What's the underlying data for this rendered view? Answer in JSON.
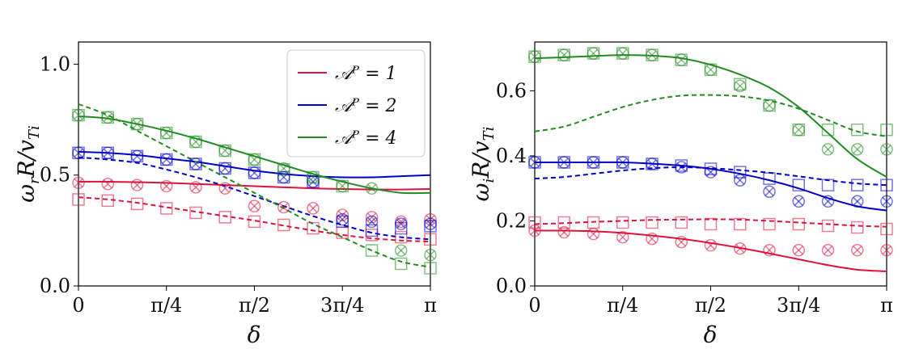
{
  "colors": {
    "red": "#dc143c",
    "blue": "#0000cd",
    "green": "#228b22"
  },
  "chart_data": [
    {
      "type": "line",
      "xlabel": "δ",
      "ylabel": "ω_r R/v_Ti",
      "ylabel_parts": {
        "main": "ω",
        "sub": "r",
        "mid": "R/v",
        "sub2": "Ti"
      },
      "xlim": [
        0,
        3.14159
      ],
      "ylim": [
        0,
        1.1
      ],
      "xticks": [
        {
          "v": 0,
          "label": "0"
        },
        {
          "v": 0.7854,
          "label": "π/4"
        },
        {
          "v": 1.5708,
          "label": "π/2"
        },
        {
          "v": 2.3562,
          "label": "3π/4"
        },
        {
          "v": 3.14159,
          "label": "π"
        }
      ],
      "yticks": [
        {
          "v": 0.0,
          "label": "0.0"
        },
        {
          "v": 0.5,
          "label": "0.5"
        },
        {
          "v": 1.0,
          "label": "1.0"
        }
      ],
      "legend": {
        "position": "top-right",
        "entries": [
          {
            "label": "𝒜ᴾ = 1",
            "color": "red"
          },
          {
            "label": "𝒜ᴾ = 2",
            "color": "blue"
          },
          {
            "label": "𝒜ᴾ = 4",
            "color": "green"
          }
        ]
      },
      "x": [
        0,
        0.2618,
        0.5236,
        0.7854,
        1.0472,
        1.309,
        1.5708,
        1.8326,
        2.0944,
        2.3562,
        2.618,
        2.8798,
        3.14159
      ],
      "series": [
        {
          "name": "A=1 solid",
          "color": "red",
          "dash": false,
          "values": [
            0.47,
            0.47,
            0.468,
            0.465,
            0.46,
            0.455,
            0.45,
            0.445,
            0.44,
            0.437,
            0.435,
            0.435,
            0.437
          ]
        },
        {
          "name": "A=1 dashed",
          "color": "red",
          "dash": true,
          "values": [
            0.4,
            0.39,
            0.375,
            0.355,
            0.335,
            0.315,
            0.295,
            0.272,
            0.25,
            0.23,
            0.215,
            0.205,
            0.2
          ]
        },
        {
          "name": "A=2 solid",
          "color": "blue",
          "dash": false,
          "values": [
            0.605,
            0.6,
            0.59,
            0.575,
            0.56,
            0.54,
            0.52,
            0.505,
            0.495,
            0.49,
            0.49,
            0.495,
            0.5
          ]
        },
        {
          "name": "A=2 dashed",
          "color": "blue",
          "dash": true,
          "values": [
            0.58,
            0.57,
            0.555,
            0.525,
            0.49,
            0.45,
            0.405,
            0.36,
            0.315,
            0.275,
            0.24,
            0.22,
            0.21
          ]
        },
        {
          "name": "A=4 solid",
          "color": "green",
          "dash": false,
          "values": [
            0.765,
            0.755,
            0.73,
            0.7,
            0.665,
            0.625,
            0.585,
            0.545,
            0.505,
            0.47,
            0.44,
            0.42,
            0.42
          ]
        },
        {
          "name": "A=4 dashed",
          "color": "green",
          "dash": true,
          "values": [
            0.82,
            0.77,
            0.7,
            0.63,
            0.56,
            0.49,
            0.42,
            0.35,
            0.28,
            0.22,
            0.16,
            0.11,
            0.085
          ]
        }
      ],
      "markers": {
        "x": [
          0,
          0.2618,
          0.5236,
          0.7854,
          1.0472,
          1.309,
          1.5708,
          1.8326,
          2.0944,
          2.3562,
          2.618,
          2.8798,
          3.14159
        ],
        "squares": [
          {
            "color": "red",
            "values": [
              0.39,
              0.385,
              0.37,
              0.35,
              0.33,
              0.31,
              0.29,
              0.275,
              0.26,
              0.24,
              0.23,
              0.22,
              0.21
            ]
          },
          {
            "color": "blue",
            "values": [
              0.6,
              0.6,
              0.585,
              0.57,
              0.55,
              0.53,
              0.51,
              0.49,
              0.47,
              0.29,
              0.25,
              0.26,
              0.27
            ]
          },
          {
            "color": "green",
            "values": [
              0.77,
              0.76,
              0.73,
              0.69,
              0.65,
              0.61,
              0.57,
              0.525,
              0.49,
              0.45,
              0.16,
              0.1,
              0.08
            ]
          }
        ],
        "crosses": [
          {
            "color": "red",
            "values": [
              0.465,
              0.46,
              0.455,
              0.45,
              0.445,
              0.44,
              0.36,
              0.355,
              0.35,
              0.32,
              0.31,
              0.29,
              0.3
            ]
          },
          {
            "color": "blue",
            "values": [
              0.6,
              0.6,
              0.585,
              0.57,
              0.55,
              0.53,
              0.51,
              0.49,
              0.47,
              0.3,
              0.29,
              0.28,
              0.28
            ]
          },
          {
            "color": "green",
            "values": [
              0.77,
              0.76,
              0.73,
              0.69,
              0.65,
              0.61,
              0.57,
              0.53,
              0.49,
              0.45,
              0.44,
              0.16,
              0.14
            ]
          }
        ]
      }
    },
    {
      "type": "line",
      "xlabel": "δ",
      "ylabel": "ω_i R/v_Ti",
      "ylabel_parts": {
        "main": "ω",
        "sub": "i",
        "mid": "R/v",
        "sub2": "Ti"
      },
      "xlim": [
        0,
        3.14159
      ],
      "ylim": [
        0,
        0.75
      ],
      "xticks": [
        {
          "v": 0,
          "label": "0"
        },
        {
          "v": 0.7854,
          "label": "π/4"
        },
        {
          "v": 1.5708,
          "label": "π/2"
        },
        {
          "v": 2.3562,
          "label": "3π/4"
        },
        {
          "v": 3.14159,
          "label": "π"
        }
      ],
      "yticks": [
        {
          "v": 0.0,
          "label": "0.0"
        },
        {
          "v": 0.2,
          "label": "0.2"
        },
        {
          "v": 0.4,
          "label": "0.4"
        },
        {
          "v": 0.6,
          "label": "0.6"
        }
      ],
      "x": [
        0,
        0.2618,
        0.5236,
        0.7854,
        1.0472,
        1.309,
        1.5708,
        1.8326,
        2.0944,
        2.3562,
        2.618,
        2.8798,
        3.14159
      ],
      "series": [
        {
          "name": "A=1 solid",
          "color": "red",
          "dash": false,
          "values": [
            0.17,
            0.17,
            0.168,
            0.163,
            0.155,
            0.145,
            0.132,
            0.117,
            0.1,
            0.082,
            0.064,
            0.05,
            0.045
          ]
        },
        {
          "name": "A=1 dashed",
          "color": "red",
          "dash": true,
          "values": [
            0.19,
            0.193,
            0.197,
            0.2,
            0.203,
            0.204,
            0.205,
            0.204,
            0.2,
            0.195,
            0.19,
            0.185,
            0.182
          ]
        },
        {
          "name": "A=2 solid",
          "color": "blue",
          "dash": false,
          "values": [
            0.38,
            0.38,
            0.38,
            0.38,
            0.376,
            0.37,
            0.36,
            0.345,
            0.325,
            0.3,
            0.27,
            0.245,
            0.232
          ]
        },
        {
          "name": "A=2 dashed",
          "color": "blue",
          "dash": true,
          "values": [
            0.33,
            0.335,
            0.345,
            0.355,
            0.362,
            0.365,
            0.362,
            0.356,
            0.348,
            0.337,
            0.325,
            0.315,
            0.31
          ]
        },
        {
          "name": "A=4 solid",
          "color": "green",
          "dash": false,
          "values": [
            0.7,
            0.703,
            0.707,
            0.71,
            0.708,
            0.7,
            0.68,
            0.65,
            0.61,
            0.55,
            0.47,
            0.39,
            0.335
          ]
        },
        {
          "name": "A=4 dashed",
          "color": "green",
          "dash": true,
          "values": [
            0.475,
            0.49,
            0.52,
            0.55,
            0.572,
            0.585,
            0.587,
            0.583,
            0.57,
            0.545,
            0.51,
            0.475,
            0.46
          ]
        }
      ],
      "markers": {
        "x": [
          0,
          0.2618,
          0.5236,
          0.7854,
          1.0472,
          1.309,
          1.5708,
          1.8326,
          2.0944,
          2.3562,
          2.618,
          2.8798,
          3.14159
        ],
        "squares": [
          {
            "color": "red",
            "values": [
              0.195,
              0.195,
              0.195,
              0.195,
              0.195,
              0.195,
              0.19,
              0.19,
              0.19,
              0.19,
              0.185,
              0.18,
              0.175
            ]
          },
          {
            "color": "blue",
            "values": [
              0.38,
              0.38,
              0.38,
              0.38,
              0.375,
              0.37,
              0.36,
              0.35,
              0.33,
              0.31,
              0.31,
              0.31,
              0.31
            ]
          },
          {
            "color": "green",
            "values": [
              0.705,
              0.71,
              0.715,
              0.715,
              0.71,
              0.695,
              0.665,
              0.62,
              0.555,
              0.48,
              0.48,
              0.48,
              0.48
            ]
          }
        ],
        "crosses": [
          {
            "color": "red",
            "values": [
              0.17,
              0.165,
              0.16,
              0.15,
              0.145,
              0.135,
              0.125,
              0.115,
              0.11,
              0.11,
              0.11,
              0.11,
              0.11
            ]
          },
          {
            "color": "blue",
            "values": [
              0.38,
              0.38,
              0.38,
              0.38,
              0.375,
              0.365,
              0.35,
              0.325,
              0.29,
              0.26,
              0.26,
              0.26,
              0.26
            ]
          },
          {
            "color": "green",
            "values": [
              0.705,
              0.71,
              0.715,
              0.715,
              0.71,
              0.695,
              0.665,
              0.615,
              0.555,
              0.48,
              0.42,
              0.42,
              0.42
            ]
          }
        ]
      }
    }
  ]
}
